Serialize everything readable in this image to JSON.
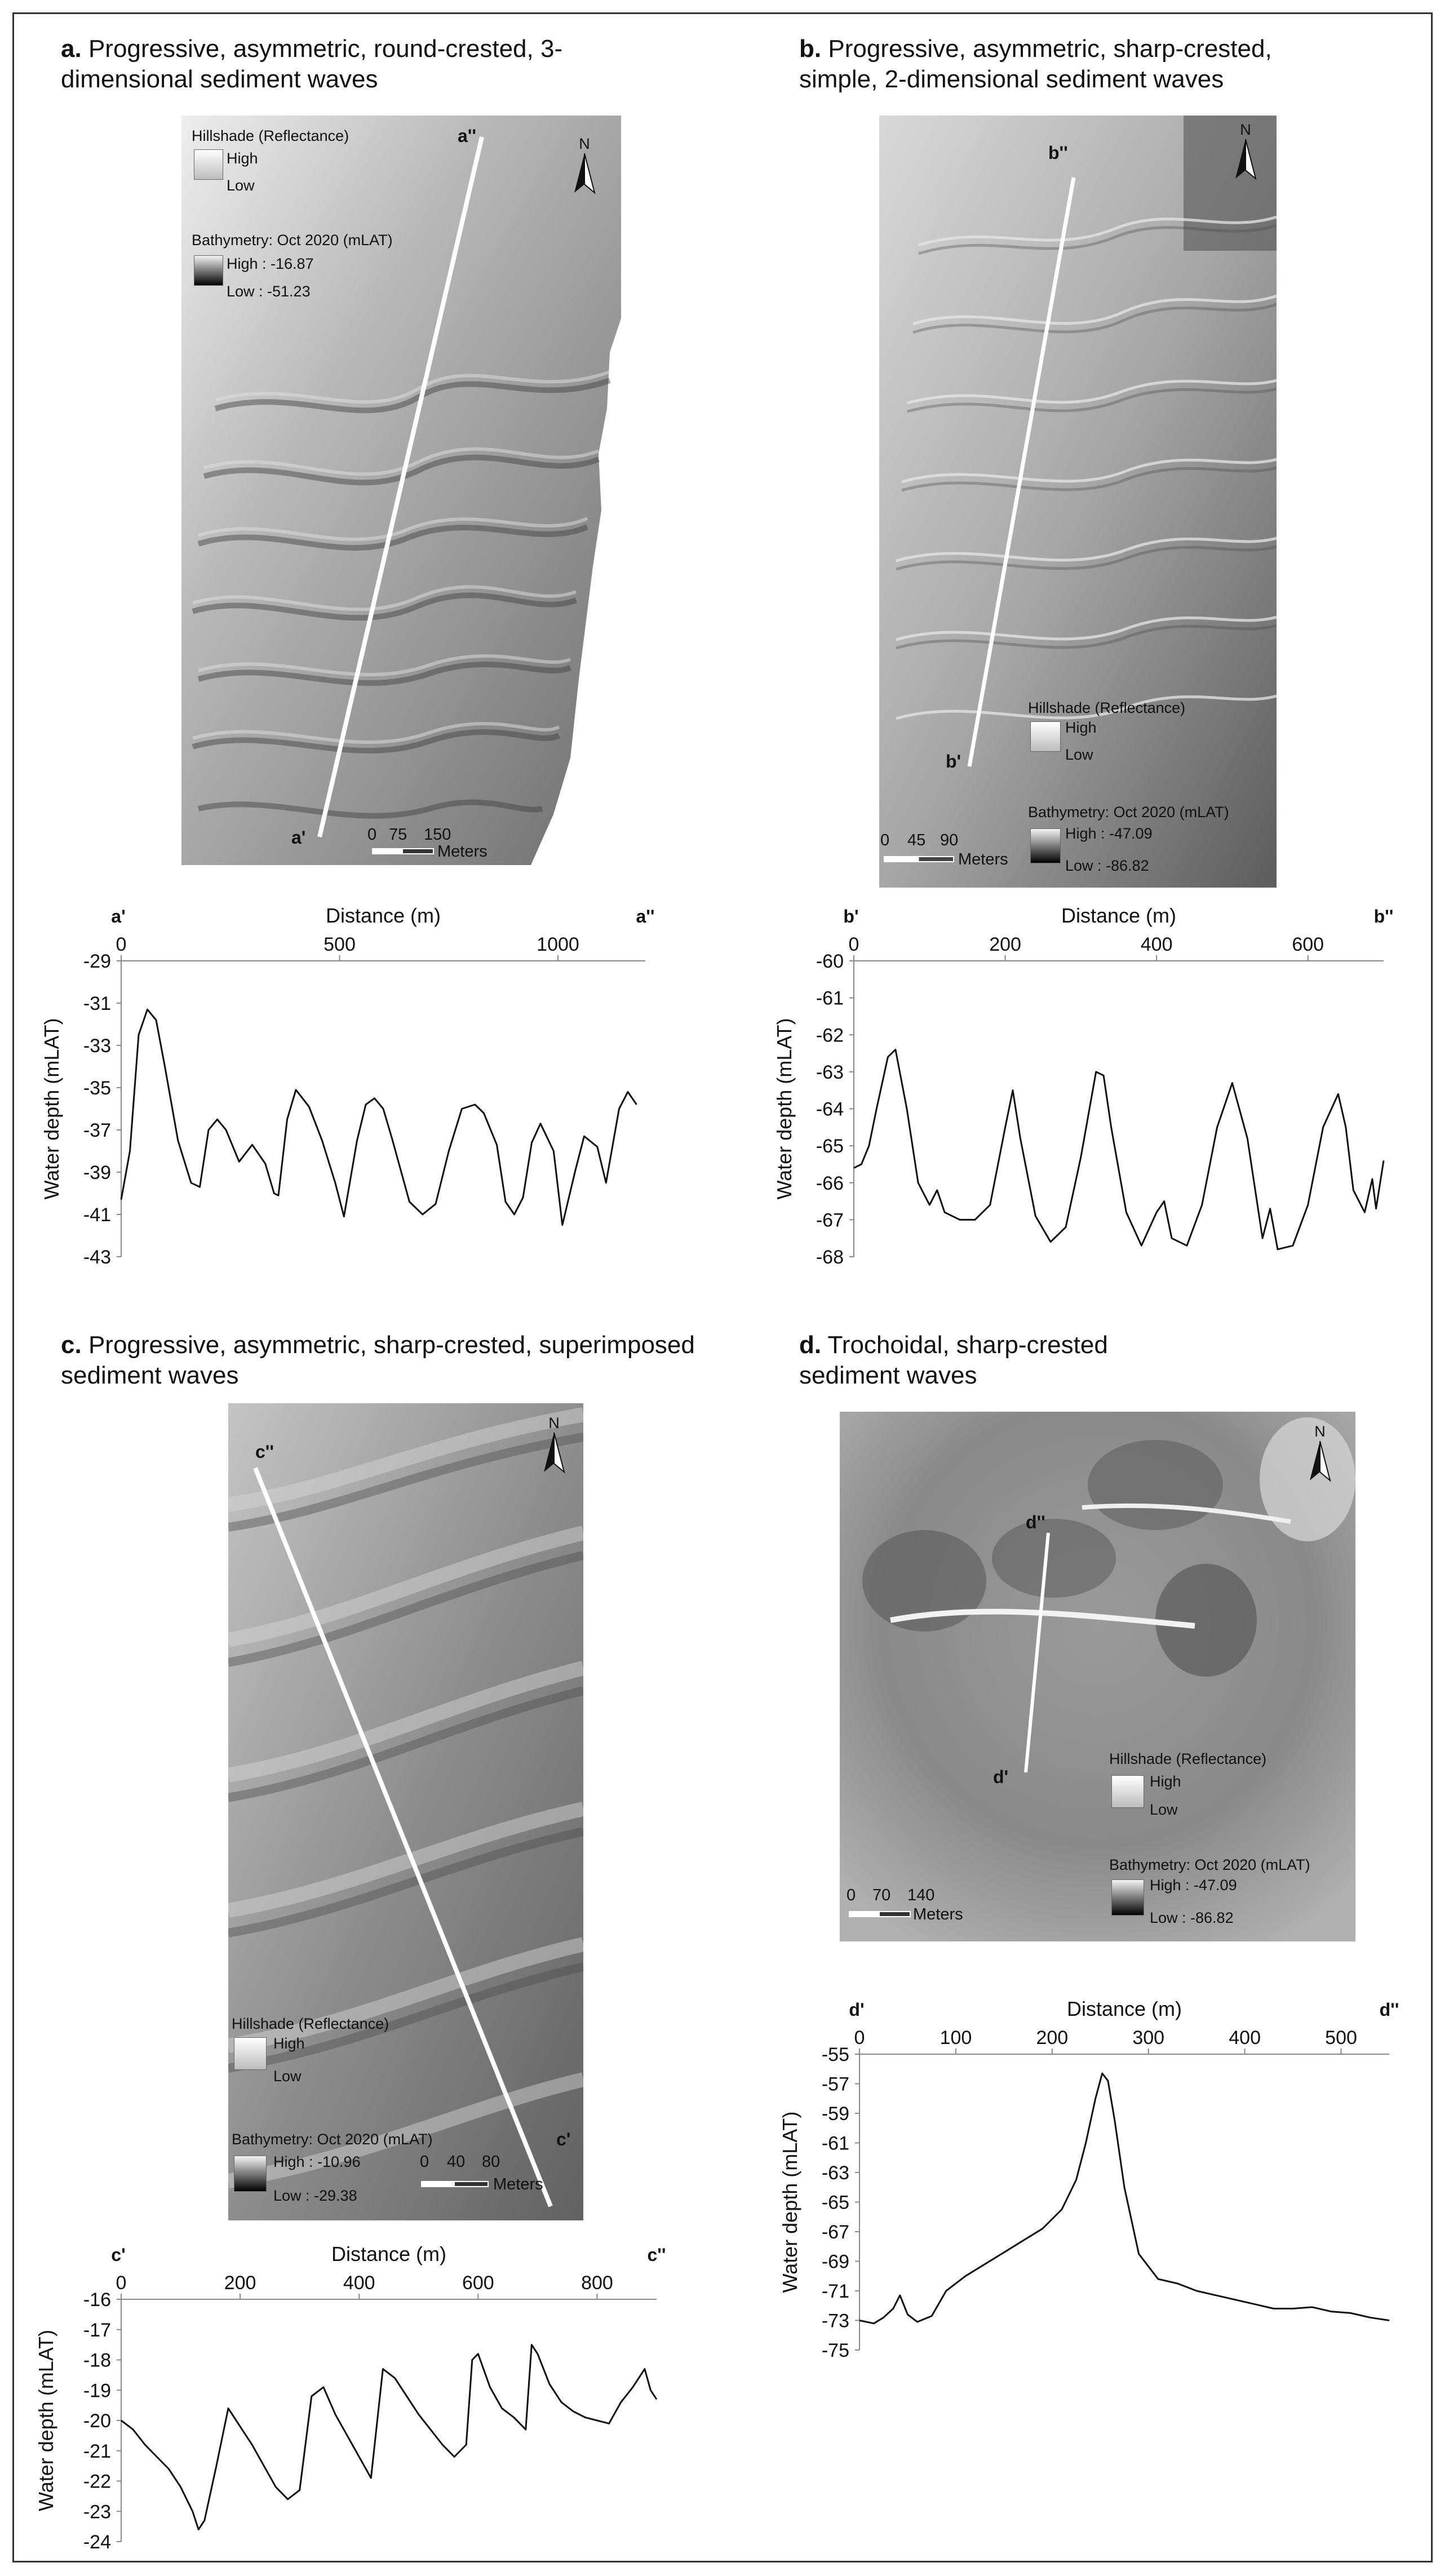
{
  "panels": {
    "a": {
      "letter": "a.",
      "title_l1": "Progressive, asymmetric, round-crested, 3-",
      "title_l2": "dimensional sediment waves",
      "hillshade_title": "Hillshade (Reflectance)",
      "hs_high": "High",
      "hs_low": "Low",
      "bathy_title": "Bathymetry: Oct 2020 (mLAT)",
      "b_high": "High : -16.87",
      "b_low": "Low : -51.23",
      "north": "N",
      "scale_0": "0",
      "scale_1": "75",
      "scale_2": "150",
      "scale_unit": "Meters",
      "start_label": "a'",
      "end_label": "a''"
    },
    "b": {
      "letter": "b.",
      "title_l1": "Progressive, asymmetric, sharp-crested,",
      "title_l2": "simple, 2-dimensional sediment waves",
      "hillshade_title": "Hillshade (Reflectance)",
      "hs_high": "High",
      "hs_low": "Low",
      "bathy_title": "Bathymetry: Oct 2020 (mLAT)",
      "b_high": "High : -47.09",
      "b_low": "Low : -86.82",
      "north": "N",
      "scale_0": "0",
      "scale_1": "45",
      "scale_2": "90",
      "scale_unit": "Meters",
      "start_label": "b'",
      "end_label": "b''"
    },
    "c": {
      "letter": "c.",
      "title_l1": "Progressive, asymmetric, sharp-crested, superimposed",
      "title_l2": "sediment waves",
      "hillshade_title": "Hillshade (Reflectance)",
      "hs_high": "High",
      "hs_low": "Low",
      "bathy_title": "Bathymetry: Oct 2020 (mLAT)",
      "b_high": "High : -10.96",
      "b_low": "Low : -29.38",
      "north": "N",
      "scale_0": "0",
      "scale_1": "40",
      "scale_2": "80",
      "scale_unit": "Meters",
      "start_label": "c'",
      "end_label": "c''"
    },
    "d": {
      "letter": "d.",
      "title_l1": "Trochoidal, sharp-crested",
      "title_l2": "sediment waves",
      "hillshade_title": "Hillshade (Reflectance)",
      "hs_high": "High",
      "hs_low": "Low",
      "bathy_title": "Bathymetry: Oct 2020 (mLAT)",
      "b_high": "High : -47.09",
      "b_low": "Low : -86.82",
      "north": "N",
      "scale_0": "0",
      "scale_1": "70",
      "scale_2": "140",
      "scale_unit": "Meters",
      "start_label": "d'",
      "end_label": "d''"
    }
  },
  "chart_data": [
    {
      "id": "a",
      "type": "line",
      "xlabel": "Distance (m)",
      "ylabel": "Water depth (mLAT)",
      "start_label": "a'",
      "end_label": "a''",
      "xlim": [
        0,
        1200
      ],
      "ylim": [
        -43,
        -29
      ],
      "xticks": [
        0,
        500,
        1000
      ],
      "yticks": [
        -29,
        -31,
        -33,
        -35,
        -37,
        -39,
        -41,
        -43
      ],
      "series": [
        {
          "x": [
            0,
            20,
            40,
            60,
            80,
            100,
            130,
            160,
            180,
            200,
            220,
            240,
            270,
            300,
            330,
            350,
            360,
            380,
            400,
            430,
            460,
            490,
            510,
            540,
            560,
            580,
            600,
            620,
            660,
            690,
            720,
            750,
            780,
            810,
            830,
            860,
            880,
            900,
            920,
            940,
            960,
            990,
            1010,
            1040,
            1060,
            1090,
            1110,
            1140,
            1160,
            1180
          ],
          "y": [
            -40.3,
            -38.0,
            -32.5,
            -31.3,
            -31.8,
            -34.0,
            -37.5,
            -39.5,
            -39.7,
            -37.0,
            -36.5,
            -37.0,
            -38.5,
            -37.7,
            -38.6,
            -40.0,
            -40.1,
            -36.5,
            -35.1,
            -35.9,
            -37.5,
            -39.5,
            -41.1,
            -37.5,
            -35.8,
            -35.5,
            -36.0,
            -37.4,
            -40.4,
            -41.0,
            -40.5,
            -38.0,
            -36.0,
            -35.8,
            -36.2,
            -37.7,
            -40.4,
            -41.0,
            -40.2,
            -37.6,
            -36.7,
            -38.0,
            -41.5,
            -38.9,
            -37.3,
            -37.8,
            -39.5,
            -36.0,
            -35.2,
            -35.8
          ]
        }
      ]
    },
    {
      "id": "b",
      "type": "line",
      "xlabel": "Distance (m)",
      "ylabel": "Water depth (mLAT)",
      "start_label": "b'",
      "end_label": "b''",
      "xlim": [
        0,
        700
      ],
      "ylim": [
        -68,
        -60
      ],
      "xticks": [
        0,
        200,
        400,
        600
      ],
      "yticks": [
        -60,
        -61,
        -62,
        -63,
        -64,
        -65,
        -66,
        -67,
        -68
      ],
      "series": [
        {
          "x": [
            0,
            10,
            20,
            30,
            45,
            55,
            70,
            85,
            100,
            110,
            120,
            140,
            160,
            180,
            200,
            210,
            220,
            240,
            260,
            280,
            300,
            320,
            330,
            340,
            360,
            380,
            400,
            410,
            420,
            440,
            460,
            480,
            500,
            520,
            540,
            550,
            560,
            580,
            600,
            620,
            640,
            650,
            660,
            675,
            685,
            690,
            700
          ],
          "y": [
            -65.6,
            -65.5,
            -65.0,
            -64.0,
            -62.6,
            -62.4,
            -64.0,
            -66.0,
            -66.6,
            -66.2,
            -66.8,
            -67.0,
            -67.0,
            -66.6,
            -64.5,
            -63.5,
            -64.8,
            -66.9,
            -67.6,
            -67.2,
            -65.3,
            -63.0,
            -63.1,
            -64.5,
            -66.8,
            -67.7,
            -66.8,
            -66.5,
            -67.5,
            -67.7,
            -66.6,
            -64.5,
            -63.3,
            -64.8,
            -67.5,
            -66.7,
            -67.8,
            -67.7,
            -66.6,
            -64.5,
            -63.6,
            -64.5,
            -66.2,
            -66.8,
            -65.9,
            -66.7,
            -65.4
          ]
        }
      ]
    },
    {
      "id": "c",
      "type": "line",
      "xlabel": "Distance (m)",
      "ylabel": "Water depth (mLAT)",
      "start_label": "c'",
      "end_label": "c''",
      "xlim": [
        0,
        900
      ],
      "ylim": [
        -24,
        -16
      ],
      "xticks": [
        0,
        200,
        400,
        600,
        800
      ],
      "yticks": [
        -16,
        -17,
        -18,
        -19,
        -20,
        -21,
        -22,
        -23,
        -24
      ],
      "series": [
        {
          "x": [
            0,
            20,
            40,
            60,
            80,
            100,
            120,
            130,
            140,
            160,
            180,
            200,
            220,
            240,
            260,
            280,
            300,
            320,
            340,
            360,
            380,
            400,
            420,
            440,
            460,
            480,
            500,
            520,
            540,
            560,
            580,
            590,
            600,
            620,
            640,
            660,
            680,
            690,
            700,
            720,
            740,
            760,
            780,
            800,
            820,
            840,
            860,
            880,
            890,
            900
          ],
          "y": [
            -20.0,
            -20.3,
            -20.8,
            -21.2,
            -21.6,
            -22.2,
            -23.0,
            -23.6,
            -23.3,
            -21.5,
            -19.6,
            -20.2,
            -20.8,
            -21.5,
            -22.2,
            -22.6,
            -22.3,
            -19.2,
            -18.9,
            -19.8,
            -20.5,
            -21.2,
            -21.9,
            -18.3,
            -18.6,
            -19.2,
            -19.8,
            -20.3,
            -20.8,
            -21.2,
            -20.8,
            -18.0,
            -17.8,
            -18.9,
            -19.6,
            -19.9,
            -20.3,
            -17.5,
            -17.8,
            -18.8,
            -19.4,
            -19.7,
            -19.9,
            -20.0,
            -20.1,
            -19.4,
            -18.9,
            -18.3,
            -19.0,
            -19.3
          ]
        }
      ]
    },
    {
      "id": "d",
      "type": "line",
      "xlabel": "Distance (m)",
      "ylabel": "Water depth (mLAT)",
      "start_label": "d'",
      "end_label": "d''",
      "xlim": [
        0,
        550
      ],
      "ylim": [
        -75,
        -55
      ],
      "xticks": [
        0,
        100,
        200,
        300,
        400,
        500
      ],
      "yticks": [
        -55,
        -57,
        -59,
        -61,
        -63,
        -65,
        -67,
        -69,
        -71,
        -73,
        -75
      ],
      "series": [
        {
          "x": [
            0,
            15,
            25,
            35,
            42,
            50,
            60,
            75,
            90,
            110,
            130,
            150,
            170,
            190,
            210,
            225,
            235,
            245,
            252,
            258,
            265,
            275,
            290,
            310,
            330,
            350,
            370,
            390,
            410,
            430,
            450,
            470,
            490,
            510,
            530,
            550
          ],
          "y": [
            -73.0,
            -73.2,
            -72.8,
            -72.2,
            -71.3,
            -72.6,
            -73.1,
            -72.7,
            -71.0,
            -70.0,
            -69.2,
            -68.4,
            -67.6,
            -66.8,
            -65.5,
            -63.5,
            -61.0,
            -58.0,
            -56.3,
            -56.8,
            -59.5,
            -64.0,
            -68.5,
            -70.2,
            -70.5,
            -71.0,
            -71.3,
            -71.6,
            -71.9,
            -72.2,
            -72.2,
            -72.1,
            -72.4,
            -72.5,
            -72.8,
            -73.0
          ]
        }
      ]
    }
  ]
}
